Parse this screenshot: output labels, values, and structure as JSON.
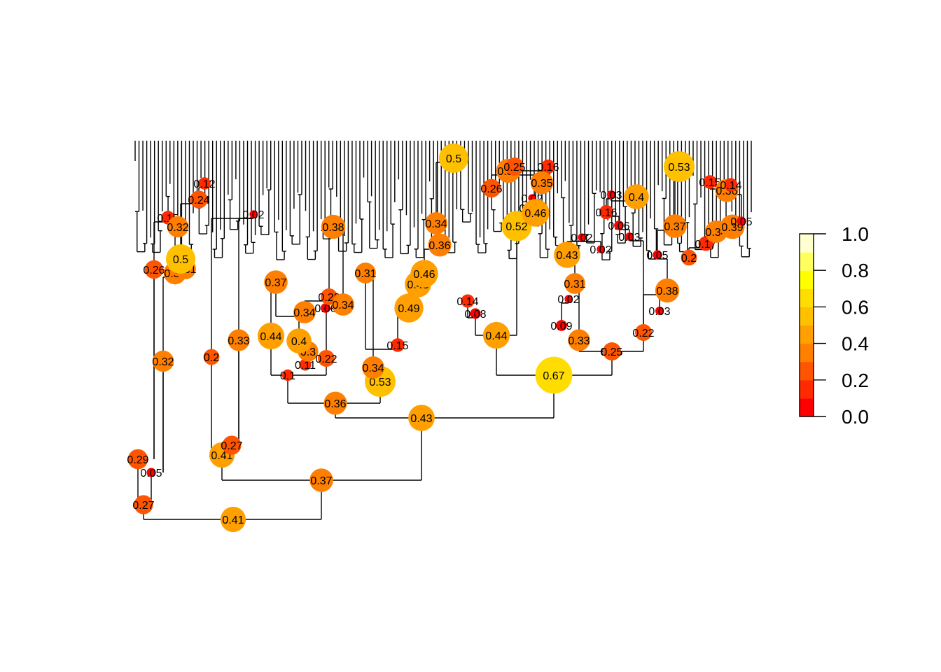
{
  "diagram": {
    "type": "phylogenetic-tree",
    "node_values": [
      {
        "id": "n01",
        "label": "0.41",
        "value": 0.41
      },
      {
        "id": "n02",
        "label": "0.27",
        "value": 0.27
      },
      {
        "id": "n03",
        "label": "0.29",
        "value": 0.29
      },
      {
        "id": "n04",
        "label": "0.05",
        "value": 0.05
      },
      {
        "id": "n05",
        "label": "0.32",
        "value": 0.32
      },
      {
        "id": "n06",
        "label": "0.26",
        "value": 0.26
      },
      {
        "id": "n07",
        "label": "0.35",
        "value": 0.35
      },
      {
        "id": "n08",
        "label": "0.31",
        "value": 0.31
      },
      {
        "id": "n09",
        "label": "0.5",
        "value": 0.5
      },
      {
        "id": "n10",
        "label": "0.15",
        "value": 0.15
      },
      {
        "id": "n11",
        "label": "0.32",
        "value": 0.32
      },
      {
        "id": "n12",
        "label": "0.24",
        "value": 0.24
      },
      {
        "id": "n13",
        "label": "0.12",
        "value": 0.12
      },
      {
        "id": "n14",
        "label": "0.37",
        "value": 0.37
      },
      {
        "id": "n15",
        "label": "0.41",
        "value": 0.41
      },
      {
        "id": "n16",
        "label": "0.27",
        "value": 0.27
      },
      {
        "id": "n17",
        "label": "0.2",
        "value": 0.2
      },
      {
        "id": "n18",
        "label": "0.33",
        "value": 0.33
      },
      {
        "id": "n19",
        "label": "0.02",
        "value": 0.02
      },
      {
        "id": "n20",
        "label": "0.43",
        "value": 0.43
      },
      {
        "id": "n21",
        "label": "0.36",
        "value": 0.36
      },
      {
        "id": "n22",
        "label": "0.1",
        "value": 0.1
      },
      {
        "id": "n23",
        "label": "0.44",
        "value": 0.44
      },
      {
        "id": "n24",
        "label": "0.37",
        "value": 0.37
      },
      {
        "id": "n25",
        "label": "0.11",
        "value": 0.11
      },
      {
        "id": "n26",
        "label": "0.3",
        "value": 0.3
      },
      {
        "id": "n27",
        "label": "0.4",
        "value": 0.4
      },
      {
        "id": "n28",
        "label": "0.22",
        "value": 0.22
      },
      {
        "id": "n29",
        "label": "0.34",
        "value": 0.34
      },
      {
        "id": "n30",
        "label": "0.06",
        "value": 0.06
      },
      {
        "id": "n31",
        "label": "0.22",
        "value": 0.22
      },
      {
        "id": "n32",
        "label": "0.34",
        "value": 0.34
      },
      {
        "id": "n33",
        "label": "0.38",
        "value": 0.38
      },
      {
        "id": "n34",
        "label": "0.53",
        "value": 0.53
      },
      {
        "id": "n35",
        "label": "0.34",
        "value": 0.34
      },
      {
        "id": "n36",
        "label": "0.31",
        "value": 0.31
      },
      {
        "id": "n37",
        "label": "0.15",
        "value": 0.15
      },
      {
        "id": "n38",
        "label": "0.49",
        "value": 0.49
      },
      {
        "id": "n39",
        "label": "0.43",
        "value": 0.43
      },
      {
        "id": "n40",
        "label": "0.46",
        "value": 0.46
      },
      {
        "id": "n41",
        "label": "0.36",
        "value": 0.36
      },
      {
        "id": "n42",
        "label": "0.34",
        "value": 0.34
      },
      {
        "id": "n43",
        "label": "0.5",
        "value": 0.5
      },
      {
        "id": "n44",
        "label": "0.67",
        "value": 0.67
      },
      {
        "id": "n45",
        "label": "0.14",
        "value": 0.14
      },
      {
        "id": "n46",
        "label": "0.08",
        "value": 0.08
      },
      {
        "id": "n47",
        "label": "0.44",
        "value": 0.44
      },
      {
        "id": "n48",
        "label": "0.26",
        "value": 0.26
      },
      {
        "id": "n49",
        "label": "0.52",
        "value": 0.52
      },
      {
        "id": "n50",
        "label": "0.38",
        "value": 0.38
      },
      {
        "id": "n51",
        "label": "0.25",
        "value": 0.25
      },
      {
        "id": "n52",
        "label": "0.16",
        "value": 0.16
      },
      {
        "id": "n53",
        "label": "0.35",
        "value": 0.35
      },
      {
        "id": "n54",
        "label": "0.02",
        "value": 0.02
      },
      {
        "id": "n55",
        "label": "0.05",
        "value": 0.05
      },
      {
        "id": "n56",
        "label": "0.46",
        "value": 0.46
      },
      {
        "id": "n57",
        "label": "0.05",
        "value": 0.05
      },
      {
        "id": "n58",
        "label": "0.25",
        "value": 0.25
      },
      {
        "id": "n59",
        "label": "0.43",
        "value": 0.43
      },
      {
        "id": "n60",
        "label": "0.31",
        "value": 0.31
      },
      {
        "id": "n61",
        "label": "0.02",
        "value": 0.02
      },
      {
        "id": "n62",
        "label": "0.09",
        "value": 0.09
      },
      {
        "id": "n63",
        "label": "0.33",
        "value": 0.33
      },
      {
        "id": "n64",
        "label": "0.02",
        "value": 0.02
      },
      {
        "id": "n65",
        "label": "0.02",
        "value": 0.02
      },
      {
        "id": "n66",
        "label": "0.03",
        "value": 0.03
      },
      {
        "id": "n67",
        "label": "0.16",
        "value": 0.16
      },
      {
        "id": "n68",
        "label": "0.06",
        "value": 0.06
      },
      {
        "id": "n69",
        "label": "0.03",
        "value": 0.03
      },
      {
        "id": "n70",
        "label": "0.4",
        "value": 0.4
      },
      {
        "id": "n71",
        "label": "0.22",
        "value": 0.22
      },
      {
        "id": "n72",
        "label": "0.53",
        "value": 0.53
      },
      {
        "id": "n73",
        "label": "0.37",
        "value": 0.37
      },
      {
        "id": "n74",
        "label": "0.05",
        "value": 0.05
      },
      {
        "id": "n75",
        "label": "0.38",
        "value": 0.38
      },
      {
        "id": "n76",
        "label": "0.03",
        "value": 0.03
      },
      {
        "id": "n77",
        "label": "0.2",
        "value": 0.2
      },
      {
        "id": "n78",
        "label": "0.17",
        "value": 0.17
      },
      {
        "id": "n79",
        "label": "0.15",
        "value": 0.15
      },
      {
        "id": "n80",
        "label": "0.36",
        "value": 0.36
      },
      {
        "id": "n81",
        "label": "0.14",
        "value": 0.14
      },
      {
        "id": "n82",
        "label": "0.34",
        "value": 0.34
      },
      {
        "id": "n83",
        "label": "0.39",
        "value": 0.39
      },
      {
        "id": "n84",
        "label": "0.05",
        "value": 0.05
      }
    ],
    "leaf_count": 160,
    "color_scale": {
      "palette": [
        "#ff0000",
        "#ff2a00",
        "#ff5500",
        "#ff7f00",
        "#ffa000",
        "#ffc000",
        "#ffdd00",
        "#ffff00",
        "#ffff60",
        "#ffffd0"
      ],
      "min": 0.0,
      "max": 1.0,
      "ticks": [
        "0.0",
        "0.2",
        "0.4",
        "0.6",
        "0.8",
        "1.0"
      ]
    }
  }
}
